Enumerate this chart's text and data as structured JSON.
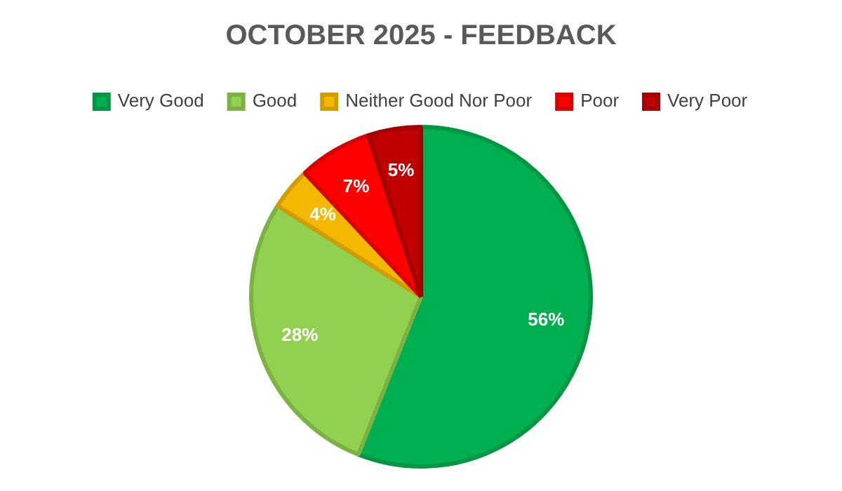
{
  "chart_data": {
    "type": "pie",
    "title": "OCTOBER 2025 - FEEDBACK",
    "categories": [
      "Very Good",
      "Good",
      "Neither Good Nor Poor",
      "Poor",
      "Very Poor"
    ],
    "values": [
      56,
      28,
      4,
      7,
      5
    ],
    "colors": [
      "#00b050",
      "#92d050",
      "#f5b800",
      "#ff0000",
      "#c00000"
    ],
    "value_labels": [
      "56%",
      "28%",
      "4%",
      "7%",
      "5%"
    ],
    "legend": "top"
  }
}
